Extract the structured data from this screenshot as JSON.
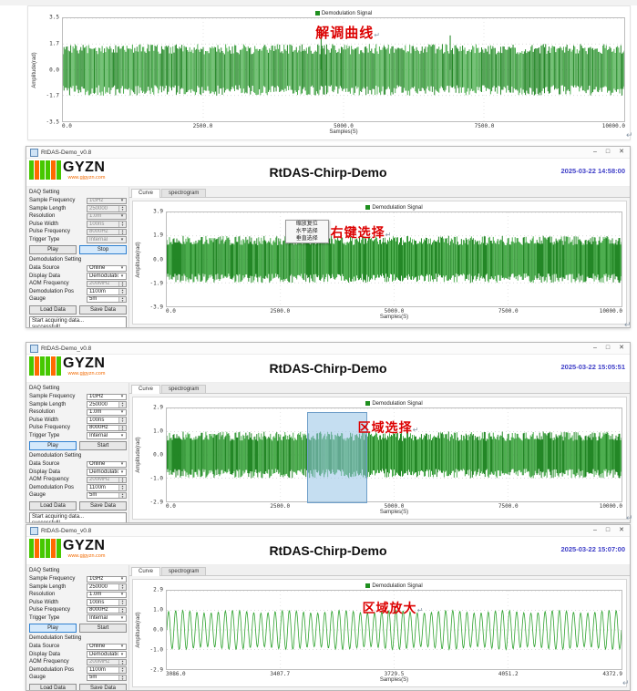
{
  "pilcrow": "↵",
  "window": {
    "titlebar": {
      "title": "RtDAS-Demo_v0.8",
      "controls": [
        "–",
        "□",
        "✕"
      ]
    },
    "logo": {
      "text": "GYZN",
      "url": "www.gjgyzn.com",
      "bar_colors": [
        "#46c800",
        "#ff6a00",
        "#46c800",
        "#46c800",
        "#ff6a00",
        "#46c800"
      ]
    },
    "app_title": "RtDAS-Chirp-Demo",
    "tabs": [
      {
        "label": "Curve",
        "active": true
      },
      {
        "label": "spectrogram",
        "active": false
      }
    ]
  },
  "sidebar": {
    "daq_title": "DAQ Setting",
    "daq_fields": [
      {
        "label": "Sample Frequency",
        "value": "1GHz",
        "type": "dropdown"
      },
      {
        "label": "Sample Length",
        "value": "250000",
        "type": "spinner"
      },
      {
        "label": "Resolution",
        "value": "1.0m",
        "type": "dropdown"
      },
      {
        "label": "Pulse Width",
        "value": "100ns",
        "type": "spinner"
      },
      {
        "label": "Pulse Frequency",
        "value": "8000Hz",
        "type": "spinner"
      },
      {
        "label": "Trigger Type",
        "value": "Internal",
        "type": "dropdown"
      }
    ],
    "demod_title": "Demodulation Setting",
    "demod_fields": [
      {
        "label": "Data Source",
        "value": "Online",
        "type": "dropdown"
      },
      {
        "label": "Display Data",
        "value": "Demodulation",
        "type": "dropdown"
      },
      {
        "label": "AOM Frequency",
        "value": "200MHz",
        "type": "spinner",
        "disabled": true
      },
      {
        "label": "Demodulation Pos",
        "value": "1100m",
        "type": "spinner"
      },
      {
        "label": "Gauge",
        "value": "5m",
        "type": "spinner"
      }
    ],
    "data_buttons": [
      "Load Data",
      "Save Data"
    ],
    "status_text": "Start acquiring data...\nsuccessfull!"
  },
  "panels": [
    {
      "kind": "chart",
      "annotation": "解调曲线"
    },
    {
      "kind": "app",
      "datetime": "2025-03-22 14:58:00",
      "annotation": "右键选择",
      "daq_disabled": true,
      "buttons": [
        {
          "label": "Play",
          "active": false
        },
        {
          "label": "Stop",
          "active": true
        }
      ],
      "context_menu": [
        "缩放复位",
        "水平选择",
        "垂直选择"
      ]
    },
    {
      "kind": "app",
      "datetime": "2025-03-22 15:05:51",
      "annotation": "区域选择",
      "daq_disabled": false,
      "buttons": [
        {
          "label": "Play",
          "active": true
        },
        {
          "label": "Start",
          "active": false
        }
      ]
    },
    {
      "kind": "app",
      "datetime": "2025-03-22 15:07:00",
      "annotation": "区域放大",
      "daq_disabled": false,
      "buttons": [
        {
          "label": "Play",
          "active": true
        },
        {
          "label": "Start",
          "active": false
        }
      ]
    }
  ],
  "chart_data": [
    {
      "type": "line",
      "title": "",
      "legend": "Demodulation Signal",
      "legend_position": "top",
      "xlabel": "Samples(S)",
      "ylabel": "Amplitude(rad)",
      "x_ticks": [
        "0.0",
        "2500.0",
        "5000.0",
        "7500.0",
        "10000.0"
      ],
      "y_ticks": [
        "3.5",
        "1.7",
        "0.0",
        "-1.7",
        "-3.5"
      ],
      "xlim": [
        0,
        10000
      ],
      "ylim": [
        -3.5,
        3.5
      ],
      "grid": true,
      "waveform": "dense-noise",
      "amplitude": 1.7,
      "spikes": [
        {
          "x": 4600,
          "value": 2.9
        },
        {
          "x": 6900,
          "value": 2.3
        }
      ],
      "line_color": "#1f8f1f"
    },
    {
      "type": "line",
      "title": "",
      "legend": "Demodulation Signal",
      "legend_position": "top",
      "xlabel": "Samples(S)",
      "ylabel": "Amplitude(rad)",
      "x_ticks": [
        "0.0",
        "2500.0",
        "5000.0",
        "7500.0",
        "10000.0"
      ],
      "y_ticks": [
        "3.9",
        "1.9",
        "0.0",
        "-1.9",
        "-3.9"
      ],
      "xlim": [
        0,
        10000
      ],
      "ylim": [
        -3.9,
        3.9
      ],
      "grid": true,
      "waveform": "dense-noise",
      "amplitude": 1.9,
      "spikes": [],
      "line_color": "#1f8f1f"
    },
    {
      "type": "line",
      "title": "",
      "legend": "Demodulation Signal",
      "legend_position": "top",
      "xlabel": "Samples(S)",
      "ylabel": "Amplitude(rad)",
      "x_ticks": [
        "0.0",
        "2500.0",
        "5000.0",
        "7500.0",
        "10000.0"
      ],
      "y_ticks": [
        "2.9",
        "1.0",
        "0.0",
        "-1.0",
        "-2.9"
      ],
      "xlim": [
        0,
        10000
      ],
      "ylim": [
        -2.9,
        2.9
      ],
      "grid": true,
      "waveform": "dense-noise",
      "amplitude": 1.0,
      "spikes": [],
      "selection_x": [
        3086,
        4373
      ],
      "line_color": "#1f8f1f"
    },
    {
      "type": "line",
      "title": "",
      "legend": "Demodulation Signal",
      "legend_position": "top",
      "xlabel": "Samples(S)",
      "ylabel": "Amplitude(rad)",
      "x_ticks": [
        "3086.0",
        "3407.7",
        "3729.5",
        "4051.2",
        "4372.9"
      ],
      "y_ticks": [
        "2.9",
        "1.0",
        "0.0",
        "-1.0",
        "-2.9"
      ],
      "xlim": [
        3086,
        4372.9
      ],
      "ylim": [
        -2.9,
        2.9
      ],
      "grid": true,
      "waveform": "sine",
      "amplitude": 1.0,
      "cycles": 64,
      "spikes": [],
      "line_color": "#2fa32f"
    }
  ]
}
